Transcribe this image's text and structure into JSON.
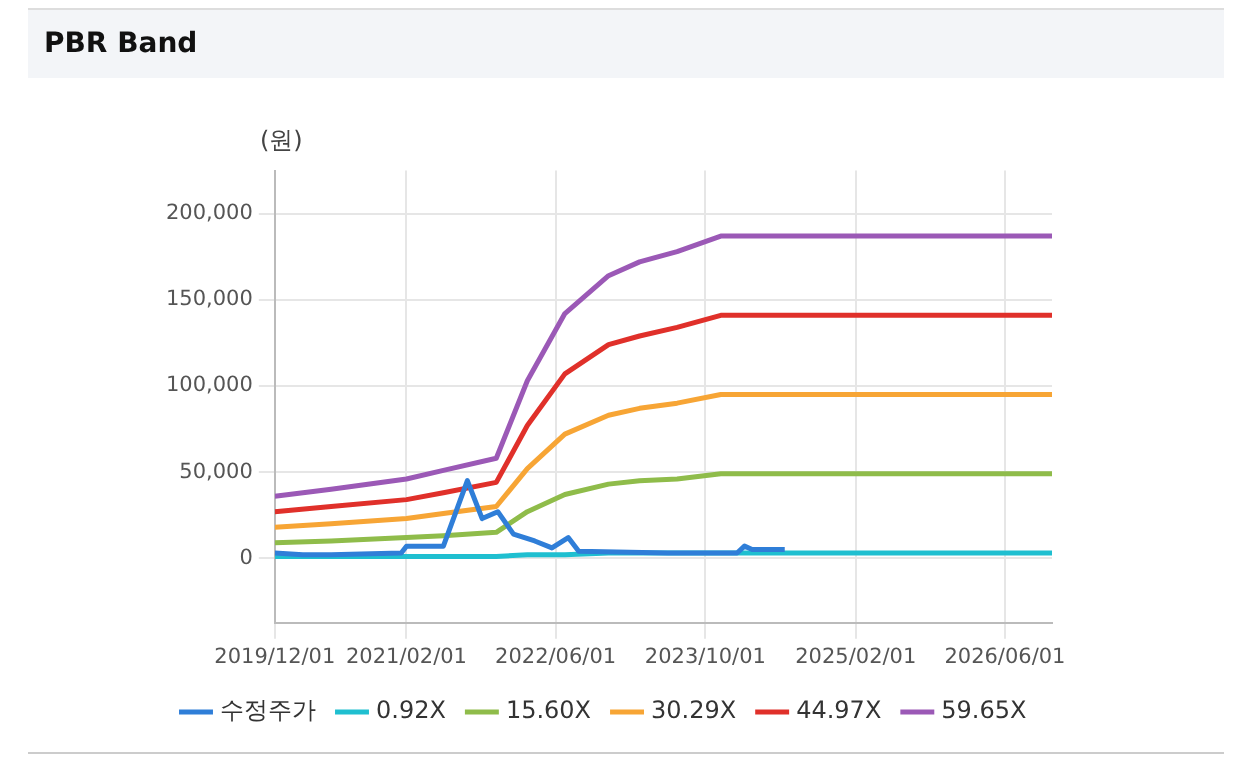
{
  "chart_data": {
    "type": "line",
    "title": "PBR Band",
    "ylabel": "(원)",
    "x": [
      "2019-12-01",
      "2020-06-01",
      "2021-02-01",
      "2021-06-01",
      "2021-11-20",
      "2022-03-01",
      "2022-07-01",
      "2022-11-20",
      "2023-03-01",
      "2023-07-01",
      "2023-11-20",
      "2026-11-01"
    ],
    "xlim": [
      "2019-12-01",
      "2026-11-01"
    ],
    "xticks": [
      {
        "value": "2019-12-01",
        "label": "2019/12/01"
      },
      {
        "value": "2021-02-01",
        "label": "2021/02/01"
      },
      {
        "value": "2022-06-01",
        "label": "2022/06/01"
      },
      {
        "value": "2023-10-01",
        "label": "2023/10/01"
      },
      {
        "value": "2025-02-01",
        "label": "2025/02/01"
      },
      {
        "value": "2026-06-01",
        "label": "2026/06/01"
      }
    ],
    "ylim": [
      -37500,
      225000
    ],
    "yticks": [
      {
        "value": 0,
        "label": "0"
      },
      {
        "value": 50000,
        "label": "50,000"
      },
      {
        "value": 100000,
        "label": "100,000"
      },
      {
        "value": 150000,
        "label": "150,000"
      },
      {
        "value": 200000,
        "label": "200,000"
      }
    ],
    "grid": true,
    "legend": "bottom",
    "marker": "none",
    "line_style": "solid",
    "series": [
      {
        "name": "수정주가",
        "color": "#2f7ed8",
        "x": [
          "2019-12-01",
          "2020-03-01",
          "2020-06-01",
          "2021-01-15",
          "2021-02-01",
          "2021-06-01",
          "2021-08-18",
          "2021-10-05",
          "2021-11-25",
          "2022-01-15",
          "2022-03-25",
          "2022-05-20",
          "2022-07-12",
          "2022-08-15",
          "2023-06-01",
          "2024-01-12",
          "2024-02-05",
          "2024-03-01",
          "2024-06-15"
        ],
        "values": [
          3000,
          2000,
          2000,
          3000,
          7000,
          7000,
          45000,
          23000,
          27000,
          14000,
          10000,
          6000,
          12000,
          4000,
          3000,
          3000,
          7000,
          5000,
          5000
        ]
      },
      {
        "name": "0.92X",
        "color": "#1fbfd0",
        "values": [
          1000,
          1000,
          1000,
          1000,
          1000,
          2000,
          2000,
          3000,
          3000,
          3000,
          3000,
          3000
        ]
      },
      {
        "name": "15.60X",
        "color": "#8fbc4a",
        "values": [
          9000,
          10000,
          12000,
          13000,
          15000,
          27000,
          37000,
          43000,
          45000,
          46000,
          49000,
          49000
        ]
      },
      {
        "name": "30.29X",
        "color": "#f7a535",
        "values": [
          18000,
          20000,
          23000,
          26000,
          30000,
          52000,
          72000,
          83000,
          87000,
          90000,
          95000,
          95000
        ]
      },
      {
        "name": "44.97X",
        "color": "#e0302a",
        "values": [
          27000,
          30000,
          34000,
          38000,
          44000,
          77000,
          107000,
          124000,
          129000,
          134000,
          141000,
          141000
        ]
      },
      {
        "name": "59.65X",
        "color": "#9b59b6",
        "values": [
          36000,
          40000,
          46000,
          51000,
          58000,
          103000,
          142000,
          164000,
          172000,
          178000,
          187000,
          187000
        ]
      }
    ]
  }
}
